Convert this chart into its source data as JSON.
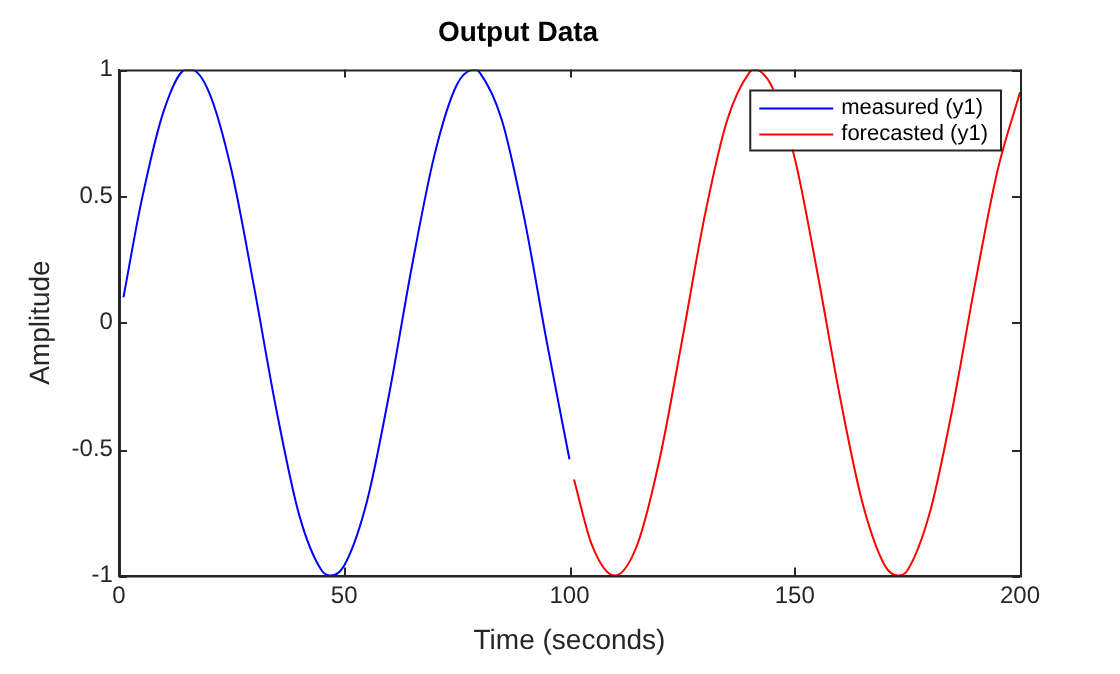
{
  "chart_data": {
    "type": "line",
    "title": "Output Data",
    "xlabel": "Time (seconds)",
    "ylabel": "Amplitude",
    "xlim": [
      0,
      200
    ],
    "xticks": [
      0,
      50,
      100,
      150,
      200
    ],
    "ylim": [
      -1,
      1
    ],
    "yticks": [
      -1,
      -0.5,
      0,
      0.5,
      1
    ],
    "grid": false,
    "legend": "top right",
    "marker": "none",
    "line_style": "solid",
    "series": [
      {
        "name": "measured (y1)",
        "color": "#0000ff",
        "x": [
          1,
          5,
          10,
          15,
          16,
          20,
          25,
          30,
          35,
          40,
          45,
          47,
          50,
          55,
          60,
          65,
          70,
          75,
          79,
          80,
          85,
          90,
          95,
          100
        ],
        "values": [
          0.1,
          0.48,
          0.84,
          1.0,
          1.0,
          0.91,
          0.6,
          0.14,
          -0.35,
          -0.76,
          -0.98,
          -1.0,
          -0.96,
          -0.71,
          -0.28,
          0.22,
          0.66,
          0.94,
          1.0,
          0.99,
          0.8,
          0.41,
          -0.08,
          -0.54
        ]
      },
      {
        "name": "forecasted (y1)",
        "color": "#ff0000",
        "x": [
          101,
          105,
          110,
          115,
          120,
          125,
          130,
          135,
          140,
          141,
          145,
          150,
          155,
          160,
          165,
          170,
          173,
          175,
          180,
          185,
          190,
          195,
          200
        ],
        "values": [
          -0.62,
          -0.88,
          -1.0,
          -0.88,
          -0.54,
          -0.07,
          0.42,
          0.8,
          0.99,
          1.0,
          0.93,
          0.65,
          0.2,
          -0.29,
          -0.71,
          -0.96,
          -1.0,
          -0.98,
          -0.75,
          -0.34,
          0.15,
          0.6,
          0.91
        ]
      }
    ]
  }
}
